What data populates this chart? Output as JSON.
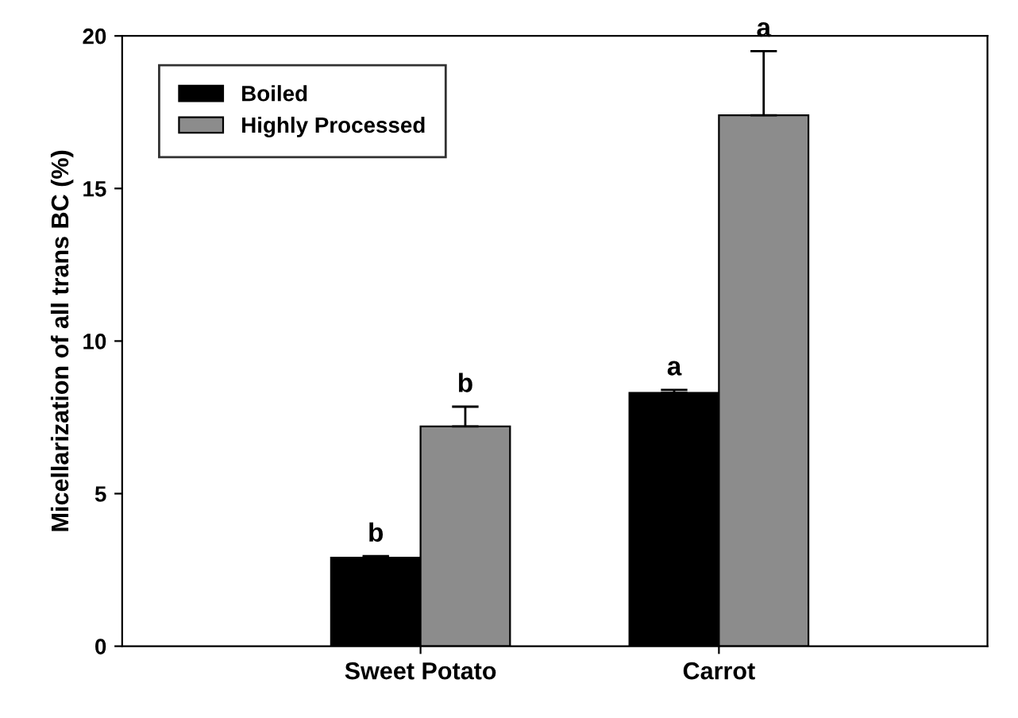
{
  "chart_data": {
    "type": "bar",
    "ylabel": "Micellarization of all trans BC (%)",
    "categories": [
      "Sweet Potato",
      "Carrot"
    ],
    "series": [
      {
        "name": "Boiled",
        "color": "#000000",
        "values": [
          2.9,
          8.3
        ],
        "value_labels": [
          "b",
          "a"
        ],
        "errors": [
          [
            2.9,
            2.95
          ],
          [
            8.3,
            8.4
          ]
        ]
      },
      {
        "name": "Highly Processed",
        "color": "#8c8c8c",
        "values": [
          7.2,
          17.4
        ],
        "value_labels": [
          "b",
          "a"
        ],
        "errors": [
          [
            7.2,
            7.85
          ],
          [
            17.4,
            19.5
          ]
        ]
      }
    ],
    "ylim": [
      0,
      20
    ],
    "yticks": [
      0,
      5,
      10,
      15,
      20
    ],
    "grid": false,
    "legend": "top left"
  }
}
